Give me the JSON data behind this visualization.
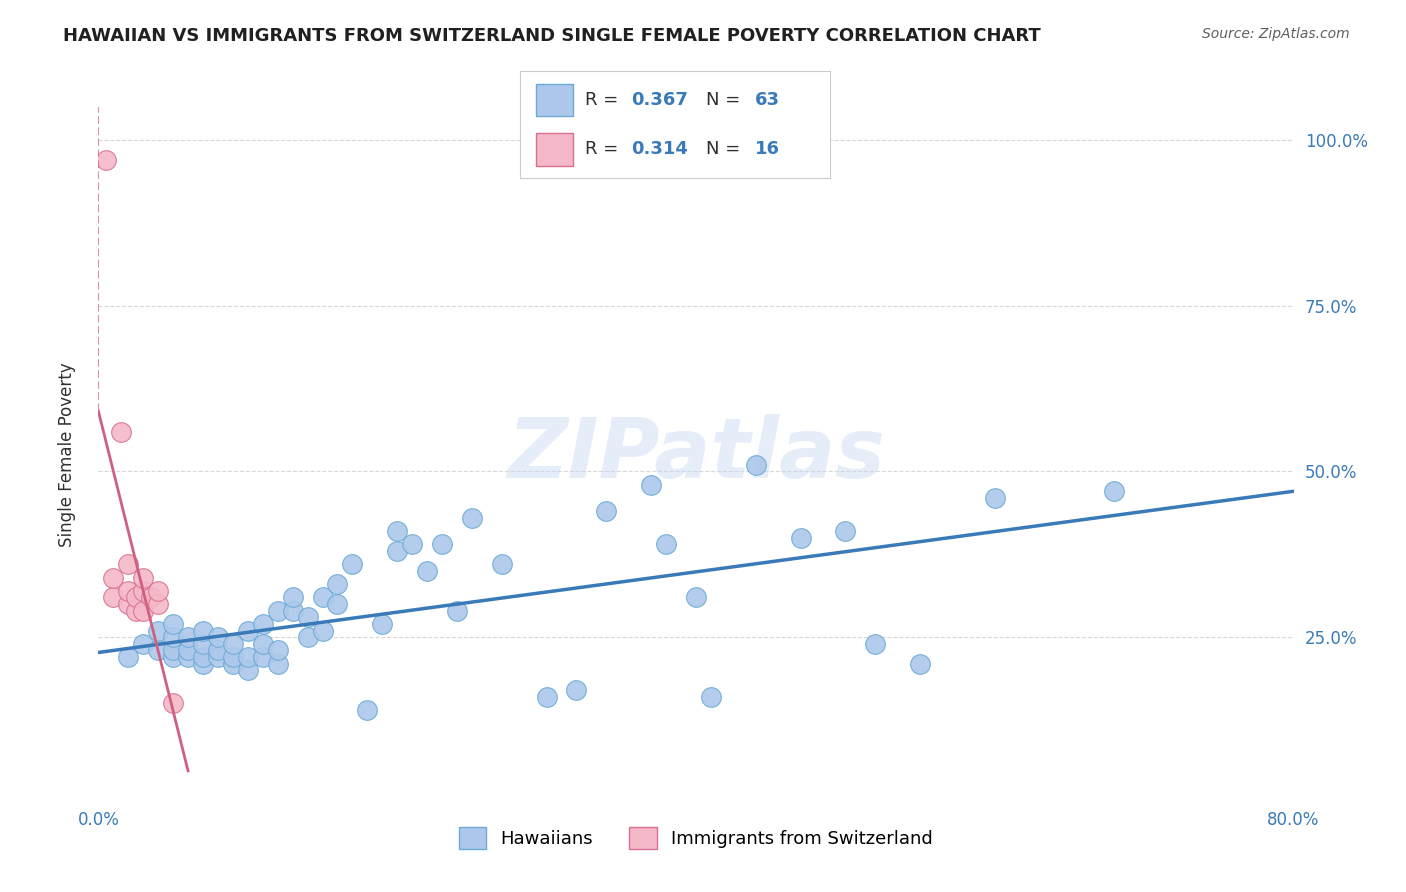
{
  "title": "HAWAIIAN VS IMMIGRANTS FROM SWITZERLAND SINGLE FEMALE POVERTY CORRELATION CHART",
  "source": "Source: ZipAtlas.com",
  "ylabel": "Single Female Poverty",
  "watermark": "ZIPatlas",
  "xlim": [
    0.0,
    0.8
  ],
  "ylim": [
    0.0,
    1.05
  ],
  "hawaiians": {
    "R": 0.367,
    "N": 63,
    "color": "#adc8ea",
    "edge_color": "#6aaad4",
    "line_color": "#3a7ab8",
    "x": [
      0.02,
      0.03,
      0.04,
      0.04,
      0.05,
      0.05,
      0.05,
      0.05,
      0.06,
      0.06,
      0.06,
      0.07,
      0.07,
      0.07,
      0.07,
      0.08,
      0.08,
      0.08,
      0.09,
      0.09,
      0.09,
      0.1,
      0.1,
      0.1,
      0.11,
      0.11,
      0.11,
      0.12,
      0.12,
      0.12,
      0.13,
      0.13,
      0.14,
      0.14,
      0.15,
      0.15,
      0.16,
      0.16,
      0.17,
      0.18,
      0.19,
      0.2,
      0.2,
      0.21,
      0.22,
      0.23,
      0.24,
      0.25,
      0.27,
      0.3,
      0.32,
      0.34,
      0.37,
      0.38,
      0.4,
      0.41,
      0.44,
      0.47,
      0.5,
      0.52,
      0.55,
      0.6,
      0.68
    ],
    "y": [
      0.22,
      0.24,
      0.23,
      0.26,
      0.22,
      0.23,
      0.25,
      0.27,
      0.22,
      0.23,
      0.25,
      0.21,
      0.22,
      0.24,
      0.26,
      0.22,
      0.23,
      0.25,
      0.21,
      0.22,
      0.24,
      0.2,
      0.22,
      0.26,
      0.22,
      0.24,
      0.27,
      0.21,
      0.23,
      0.29,
      0.29,
      0.31,
      0.25,
      0.28,
      0.26,
      0.31,
      0.3,
      0.33,
      0.36,
      0.14,
      0.27,
      0.38,
      0.41,
      0.39,
      0.35,
      0.39,
      0.29,
      0.43,
      0.36,
      0.16,
      0.17,
      0.44,
      0.48,
      0.39,
      0.31,
      0.16,
      0.51,
      0.4,
      0.41,
      0.24,
      0.21,
      0.46,
      0.47
    ]
  },
  "swiss": {
    "R": 0.314,
    "N": 16,
    "color": "#f4b8c8",
    "edge_color": "#d87090",
    "line_color": "#d06080",
    "x": [
      0.005,
      0.01,
      0.01,
      0.015,
      0.02,
      0.02,
      0.02,
      0.025,
      0.025,
      0.03,
      0.03,
      0.03,
      0.035,
      0.04,
      0.04,
      0.05
    ],
    "y": [
      0.97,
      0.31,
      0.34,
      0.56,
      0.3,
      0.32,
      0.36,
      0.29,
      0.31,
      0.29,
      0.32,
      0.34,
      0.31,
      0.3,
      0.32,
      0.15
    ]
  },
  "background_color": "#ffffff",
  "grid_color": "#d8d8d8",
  "title_color": "#202020",
  "source_color": "#606060",
  "value_color": "#3a7ab8"
}
